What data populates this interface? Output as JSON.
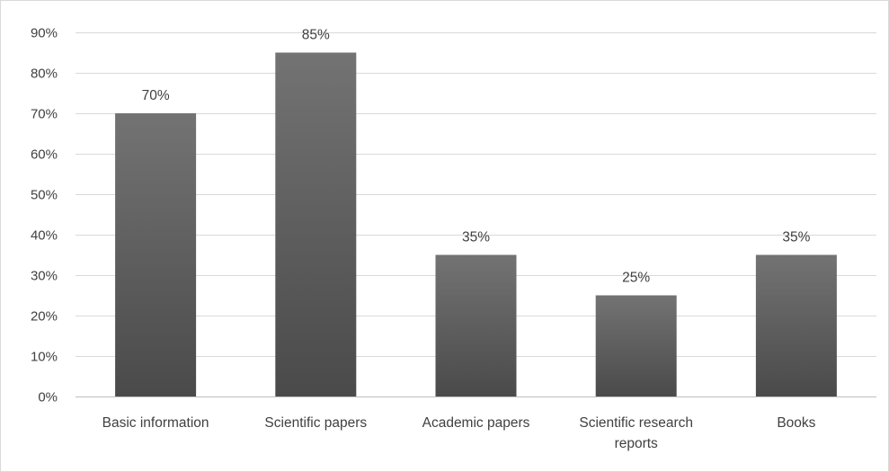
{
  "chart_data": {
    "type": "bar",
    "title": "",
    "xlabel": "",
    "ylabel": "",
    "categories": [
      [
        "Basic information"
      ],
      [
        "Scientific papers"
      ],
      [
        "Academic papers"
      ],
      [
        "Scientific research",
        "reports"
      ],
      [
        "Books"
      ]
    ],
    "values": [
      70,
      85,
      35,
      25,
      35
    ],
    "data_labels": [
      "70%",
      "85%",
      "35%",
      "25%",
      "35%"
    ],
    "ylim": [
      0,
      90
    ],
    "yticks": [
      0,
      10,
      20,
      30,
      40,
      50,
      60,
      70,
      80,
      90
    ],
    "ytick_labels": [
      "0%",
      "10%",
      "20%",
      "30%",
      "40%",
      "50%",
      "60%",
      "70%",
      "80%",
      "90%"
    ],
    "grid": true,
    "legend": "none",
    "colors": {
      "bar_top": "#737373",
      "bar_bottom": "#4a4a4a",
      "grid": "#d9d9d9",
      "axis": "#bfbfbf",
      "text": "#404040"
    }
  }
}
